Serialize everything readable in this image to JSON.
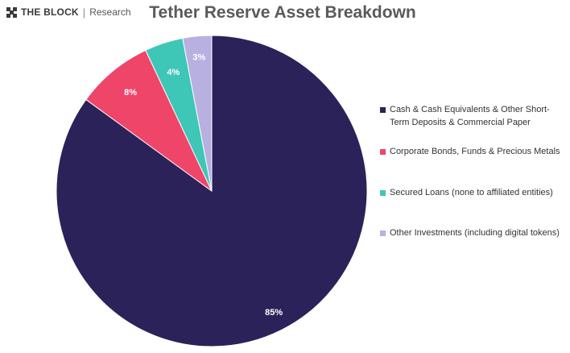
{
  "brand": {
    "name": "THE BLOCK",
    "separator": "|",
    "subtitle": "Research"
  },
  "colors": {
    "title": "#5a5a5a",
    "background": "#ffffff",
    "slice_border": "#ffffff",
    "data_label_light": "#ffffff",
    "data_label_dark": "#ffffff"
  },
  "chart_data": {
    "type": "pie",
    "title": "Tether Reserve Asset Breakdown",
    "legend_position": "right",
    "start": "12 o'clock",
    "direction": "clockwise",
    "slices": [
      {
        "label": "Cash & Cash Equivalents & Other Short-Term Deposits & Commercial Paper",
        "value": 85,
        "display": "85%",
        "color": "#2b2259"
      },
      {
        "label": "Corporate Bonds, Funds & Precious Metals",
        "value": 8,
        "display": "8%",
        "color": "#ef4569"
      },
      {
        "label": "Secured Loans (none to affiliated entities)",
        "value": 4,
        "display": "4%",
        "color": "#3ec6b7"
      },
      {
        "label": "Other Investments (including digital tokens)",
        "value": 3,
        "display": "3%",
        "color": "#b8b0e0"
      }
    ]
  }
}
